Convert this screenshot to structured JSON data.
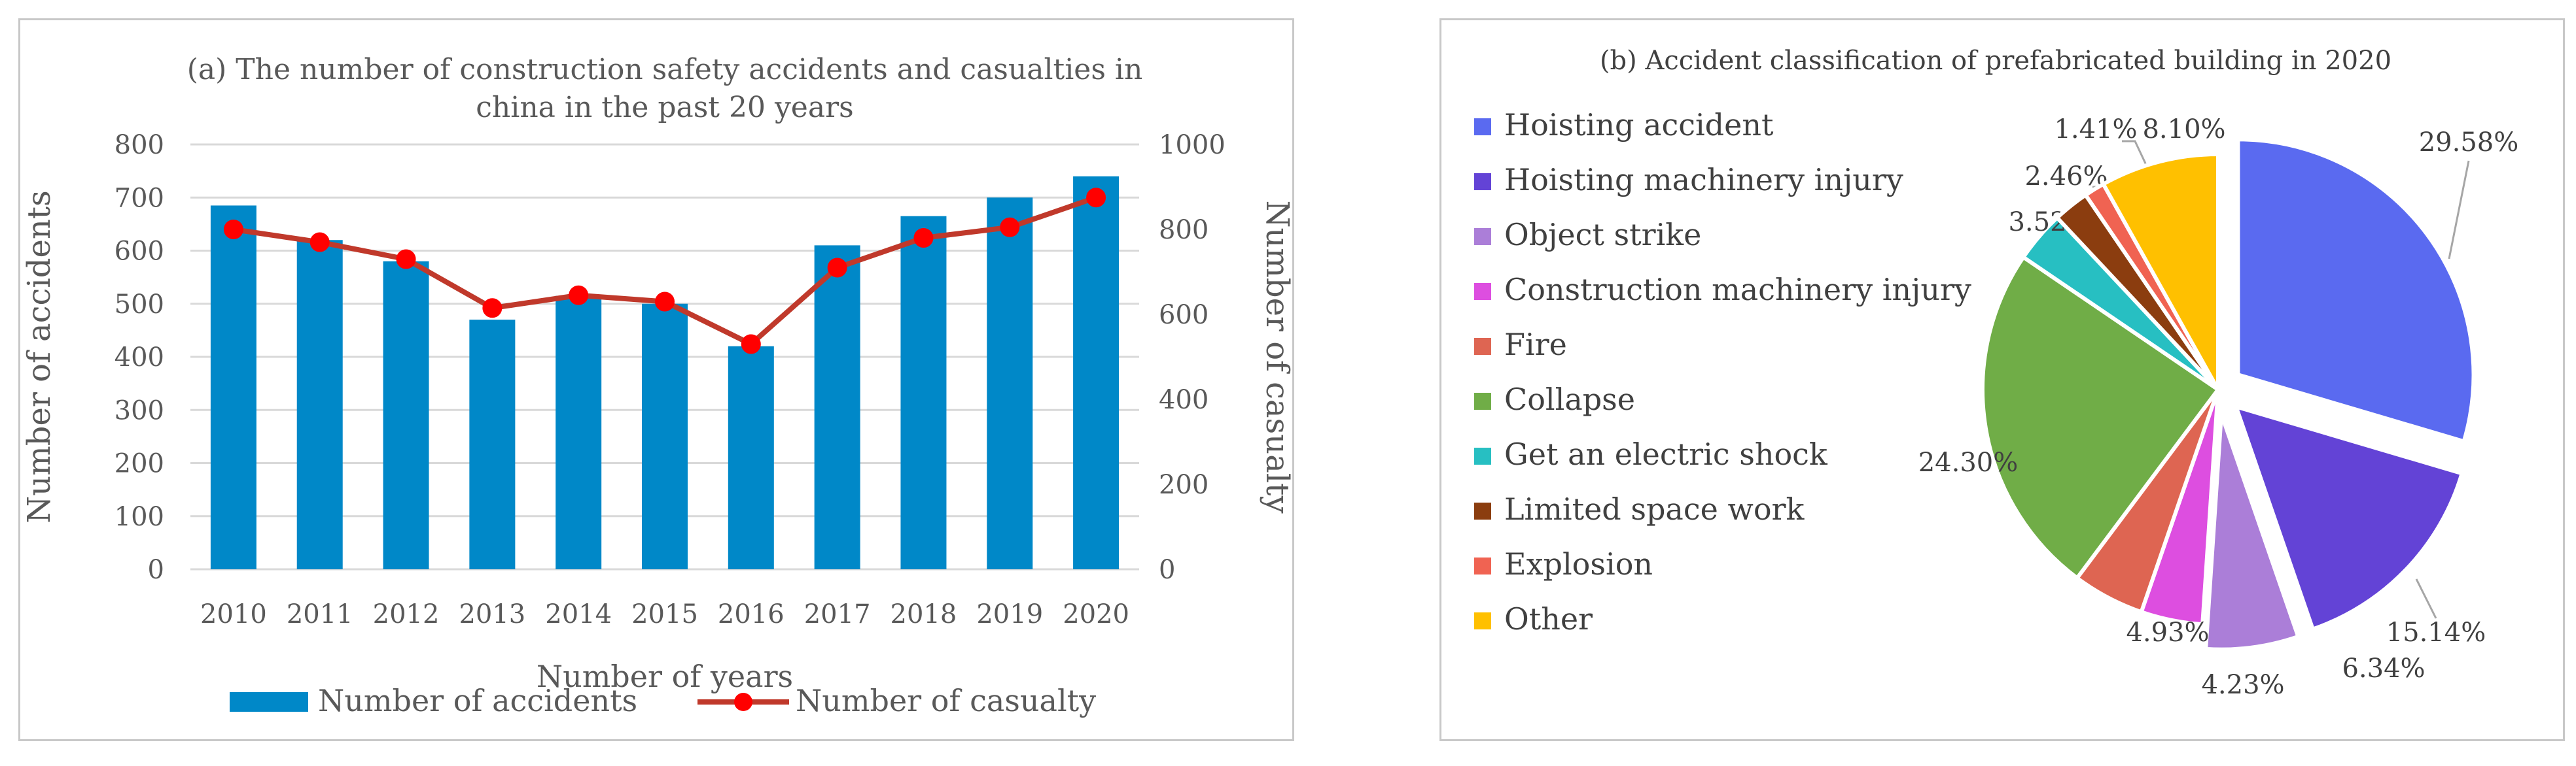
{
  "chart_data": [
    {
      "type": "bar+line",
      "title": "(a) The number of construction safety accidents and casualties in china in the past 20 years",
      "title_lines": [
        "(a) The number of construction safety accidents and casualties in",
        "china in the past 20 years"
      ],
      "categories": [
        "2010",
        "2011",
        "2012",
        "2013",
        "2014",
        "2015",
        "2016",
        "2017",
        "2018",
        "2019",
        "2020"
      ],
      "series": [
        {
          "name": "Number of accidents",
          "type": "bar",
          "axis": "left",
          "values": [
            685,
            620,
            580,
            470,
            515,
            500,
            420,
            610,
            665,
            700,
            740
          ]
        },
        {
          "name": "Number of casualty",
          "type": "line",
          "axis": "right",
          "values": [
            800,
            770,
            730,
            615,
            645,
            630,
            530,
            710,
            780,
            805,
            875
          ]
        }
      ],
      "xlabel": "Number of years",
      "ylabel": "Number of accidents",
      "y2label": "Number of casualty",
      "ylim": [
        0,
        800
      ],
      "yticks": [
        "0",
        "100",
        "200",
        "300",
        "400",
        "500",
        "600",
        "700",
        "800"
      ],
      "y2lim": [
        0,
        1000
      ],
      "y2ticks": [
        "0",
        "200",
        "400",
        "600",
        "800",
        "1000"
      ],
      "legend_position": "bottom",
      "colors": {
        "bar": "#0088c8",
        "line": "#c0392b",
        "marker": "#ff0000"
      }
    },
    {
      "type": "pie",
      "title": "(b) Accident classification of prefabricated building in 2020",
      "legend_position": "left",
      "slices": [
        {
          "label": "Hoisting accident",
          "value": 29.58,
          "display": "29.58%",
          "color": "#5a6af0",
          "exploded": true
        },
        {
          "label": "Hoisting machinery injury",
          "value": 15.14,
          "display": "15.14%",
          "color": "#6343d6",
          "exploded": true
        },
        {
          "label": "Object strike",
          "value": 6.34,
          "display": "6.34%",
          "color": "#ab7ed8",
          "exploded": true
        },
        {
          "label": "Construction machinery injury",
          "value": 4.23,
          "display": "4.23%",
          "color": "#dd4ee0",
          "exploded": false
        },
        {
          "label": "Fire",
          "value": 4.93,
          "display": "4.93%",
          "color": "#de6552",
          "exploded": false
        },
        {
          "label": "Collapse",
          "value": 24.3,
          "display": "24.30%",
          "color": "#70ad47",
          "exploded": false
        },
        {
          "label": "Get an electric shock",
          "value": 3.52,
          "display": "3.52%",
          "color": "#27bfc2",
          "exploded": false
        },
        {
          "label": "Limited space work",
          "value": 2.46,
          "display": "2.46%",
          "color": "#8b3d0f",
          "exploded": false
        },
        {
          "label": "Explosion",
          "value": 1.41,
          "display": "1.41%",
          "color": "#f06352",
          "exploded": false
        },
        {
          "label": "Other",
          "value": 8.1,
          "display": "8.10%",
          "color": "#ffc000",
          "exploded": false
        }
      ]
    }
  ]
}
